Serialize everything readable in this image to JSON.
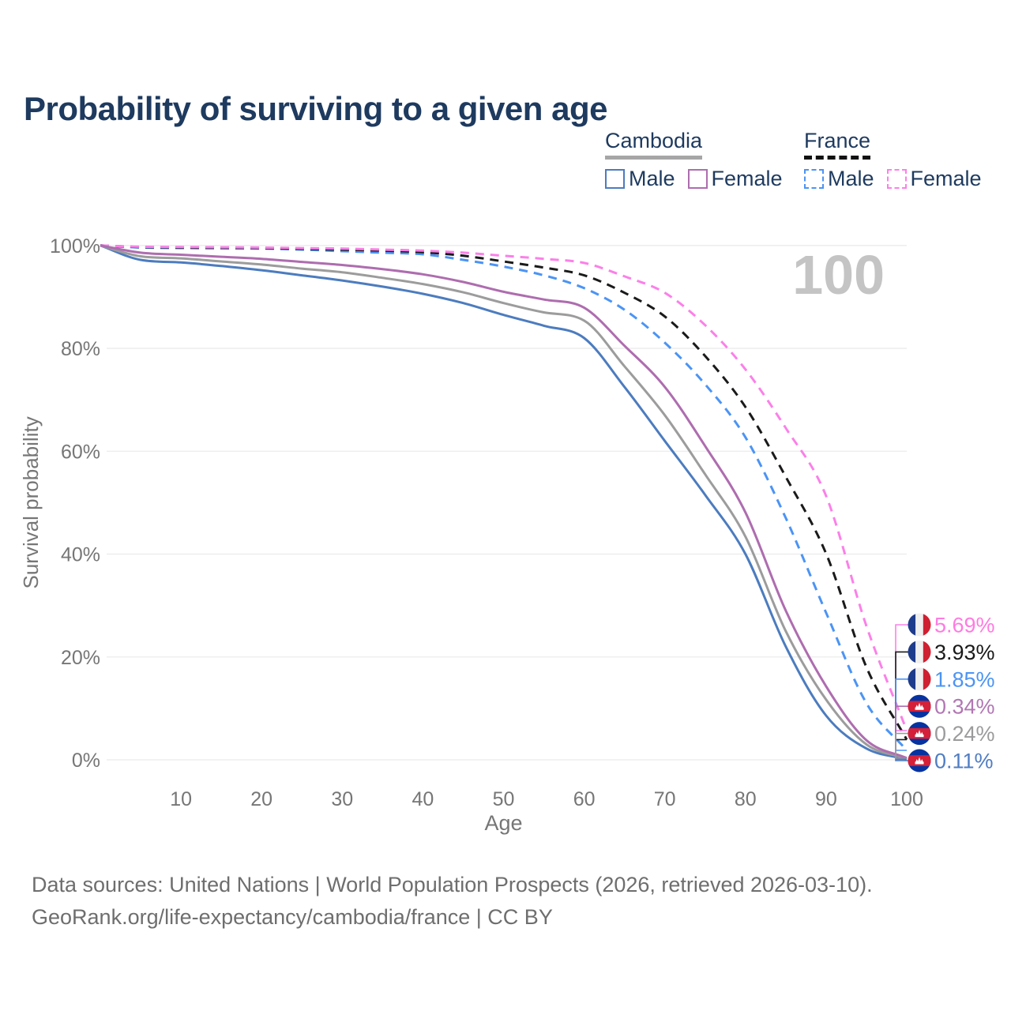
{
  "title": "Probability of surviving to a given age",
  "watermark": "100",
  "legend": {
    "groups": [
      {
        "id": "cambodia",
        "label": "Cambodia",
        "line_style": "solid",
        "line_color": "#a6a6a6",
        "items": [
          {
            "series": "cambodia-male",
            "label": "Male"
          },
          {
            "series": "cambodia-female",
            "label": "Female"
          }
        ]
      },
      {
        "id": "france",
        "label": "France",
        "line_style": "dashed",
        "line_color": "#121212",
        "items": [
          {
            "series": "france-male",
            "label": "Male"
          },
          {
            "series": "france-female",
            "label": "Female"
          }
        ]
      }
    ]
  },
  "flags": {
    "france": {
      "blue": "#1e3c8c",
      "white": "#f0f0f0",
      "red": "#ce2031"
    },
    "cambodia": {
      "blue": "#0633a0",
      "red": "#d42038",
      "temple": "#ffffff"
    }
  },
  "chart_data": {
    "type": "line",
    "title": "Probability of surviving to a given age",
    "xlabel": "Age",
    "ylabel": "Survival probability",
    "xlim": [
      0,
      100
    ],
    "ylim": [
      0,
      100
    ],
    "grid": "horizontal",
    "x_tick_labels": [
      "10",
      "20",
      "30",
      "40",
      "50",
      "60",
      "70",
      "80",
      "90",
      "100"
    ],
    "x_tick_values": [
      10,
      20,
      30,
      40,
      50,
      60,
      70,
      80,
      90,
      100
    ],
    "y_tick_labels": [
      "0%",
      "20%",
      "40%",
      "60%",
      "80%",
      "100%"
    ],
    "y_tick_values": [
      0,
      20,
      40,
      60,
      80,
      100
    ],
    "x": [
      0,
      5,
      10,
      15,
      20,
      25,
      30,
      35,
      40,
      45,
      50,
      55,
      60,
      65,
      70,
      75,
      80,
      85,
      90,
      95,
      100
    ],
    "series": [
      {
        "id": "france-male",
        "country": "france",
        "sex": "male",
        "color": "#4b94f4",
        "label_color": "#4b94f4",
        "dash": "dashed",
        "end_label": "1.85%",
        "values": [
          100,
          99.6,
          99.5,
          99.45,
          99.4,
          99.2,
          98.9,
          98.6,
          98.3,
          97.2,
          95.9,
          94.2,
          91.7,
          87.5,
          81.1,
          73.0,
          62.7,
          47.0,
          28.6,
          11.0,
          1.85
        ]
      },
      {
        "id": "france-total",
        "country": "france",
        "sex": "both",
        "color": "#1a1a1a",
        "label_color": "#1a1a1a",
        "dash": "dashed",
        "end_label": "3.93%",
        "values": [
          100,
          99.7,
          99.6,
          99.55,
          99.5,
          99.35,
          99.2,
          99.0,
          98.7,
          98.0,
          96.9,
          95.7,
          94.2,
          90.8,
          86.2,
          78.5,
          68.6,
          55.0,
          40.1,
          18.0,
          3.93
        ]
      },
      {
        "id": "france-female",
        "country": "france",
        "sex": "female",
        "color": "#fb80e8",
        "label_color": "#ff7be1",
        "dash": "dashed",
        "end_label": "5.69%",
        "values": [
          100,
          99.75,
          99.7,
          99.65,
          99.6,
          99.5,
          99.4,
          99.2,
          99.0,
          98.6,
          98.0,
          97.4,
          96.6,
          94.0,
          90.8,
          84.5,
          75.9,
          64.5,
          51.3,
          26.0,
          5.69
        ]
      },
      {
        "id": "cambodia-male",
        "country": "cambodia",
        "sex": "male",
        "color": "#4c7cbf",
        "label_color": "#4f7dc3",
        "dash": "solid",
        "end_label": "0.11%",
        "values": [
          100,
          97.2,
          96.7,
          96.0,
          95.2,
          94.2,
          93.2,
          92.0,
          90.6,
          88.8,
          86.5,
          84.4,
          82.0,
          72.5,
          62.0,
          51.5,
          40.0,
          22.0,
          8.6,
          2.2,
          0.11
        ]
      },
      {
        "id": "cambodia-total",
        "country": "cambodia",
        "sex": "both",
        "color": "#9c9c9c",
        "label_color": "#9b9b9d",
        "dash": "solid",
        "end_label": "0.24%",
        "values": [
          100,
          97.9,
          97.5,
          96.9,
          96.3,
          95.5,
          94.8,
          93.7,
          92.5,
          90.9,
          88.8,
          87.0,
          85.4,
          76.5,
          67.0,
          55.5,
          43.4,
          25.0,
          11.7,
          3.0,
          0.24
        ]
      },
      {
        "id": "cambodia-female",
        "country": "cambodia",
        "sex": "female",
        "color": "#ae6daf",
        "label_color": "#b177b3",
        "dash": "solid",
        "end_label": "0.34%",
        "values": [
          100,
          98.6,
          98.2,
          97.8,
          97.4,
          96.8,
          96.2,
          95.4,
          94.4,
          92.9,
          91.0,
          89.5,
          87.9,
          80.5,
          72.5,
          61.0,
          48.1,
          29.0,
          14.3,
          3.8,
          0.34
        ]
      }
    ]
  },
  "footer": {
    "line1": "Data sources: United Nations | World Population Prospects (2026, retrieved 2026-03-10).",
    "line2": "GeoRank.org/life-expectancy/cambodia/france | CC BY"
  }
}
